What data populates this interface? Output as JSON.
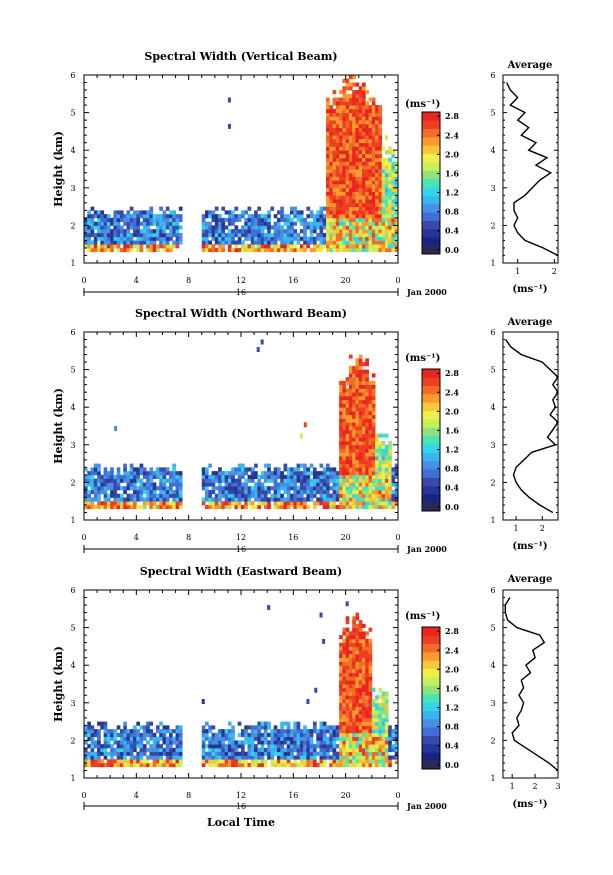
{
  "chart_data": [
    {
      "type": "heatmap",
      "title": "Spectral Width (Vertical Beam)",
      "ylabel": "Height (km)",
      "ylim": [
        1,
        6
      ],
      "xlim": [
        0,
        24
      ],
      "x_ticks": [
        "0",
        "4",
        "8",
        "12",
        "16",
        "20",
        "0"
      ],
      "y_ticks": [
        "1",
        "2",
        "3",
        "4",
        "5",
        "6"
      ],
      "day_label": "16",
      "month_label": "Jan 2000",
      "colorbar": {
        "unit": "(ms⁻¹)",
        "range": [
          0,
          2.8
        ],
        "labels": [
          "2.8",
          "2.4",
          "2.0",
          "1.6",
          "1.2",
          "0.8",
          "0.4",
          "0.0"
        ]
      },
      "cloud_top_km": 2.5,
      "gap_hours": [
        [
          7.5,
          8.8
        ]
      ],
      "storm": [
        {
          "start": 18.5,
          "end": 22.6,
          "top_km": 5.6,
          "peak_hour": 20.5,
          "peak_top_km": 6.0,
          "weak_end": 24
        }
      ],
      "spots": [
        [
          11,
          5.3,
          0.4
        ],
        [
          11,
          4.6,
          0.4
        ],
        [
          23,
          4.3,
          1.6
        ]
      ],
      "average": {
        "title": "Average",
        "xlabel": "(ms⁻¹)",
        "x_range": [
          0.6,
          2.1
        ],
        "x_ticks": [
          "1",
          "2"
        ],
        "y_ticks": [
          "1",
          "2",
          "3",
          "4",
          "5",
          "6"
        ],
        "height_km": [
          1.2,
          1.4,
          1.6,
          1.8,
          2.0,
          2.2,
          2.4,
          2.6,
          2.8,
          3.0,
          3.2,
          3.4,
          3.6,
          3.8,
          4.0,
          4.2,
          4.4,
          4.6,
          4.8,
          5.0,
          5.2,
          5.4,
          5.6,
          5.8
        ],
        "width_ms": [
          2.1,
          1.7,
          1.2,
          1.0,
          0.9,
          1.0,
          0.9,
          0.9,
          1.2,
          1.4,
          1.6,
          1.9,
          1.5,
          1.8,
          1.3,
          1.5,
          1.1,
          1.3,
          1.0,
          1.2,
          0.8,
          1.0,
          0.8,
          0.7
        ]
      }
    },
    {
      "type": "heatmap",
      "title": "Spectral Width (Northward Beam)",
      "ylabel": "Height (km)",
      "ylim": [
        1,
        6
      ],
      "xlim": [
        0,
        24
      ],
      "x_ticks": [
        "0",
        "4",
        "8",
        "12",
        "16",
        "20",
        "0"
      ],
      "y_ticks": [
        "1",
        "2",
        "3",
        "4",
        "5",
        "6"
      ],
      "day_label": "16",
      "month_label": "Jan 2000",
      "colorbar": {
        "unit": "(ms⁻¹)",
        "range": [
          0,
          2.8
        ],
        "labels": [
          "2.8",
          "2.4",
          "2.0",
          "1.6",
          "1.2",
          "0.8",
          "0.4",
          "0.0"
        ]
      },
      "cloud_top_km": 2.5,
      "gap_hours": [
        [
          7.5,
          8.8
        ]
      ],
      "storm": [
        {
          "start": 19.3,
          "end": 22.2,
          "top_km": 5.0,
          "peak_hour": 20.8,
          "peak_top_km": 5.5,
          "weak_end": 23.5
        }
      ],
      "spots": [
        [
          13.5,
          5.7,
          0.4
        ],
        [
          13.2,
          5.5,
          0.4
        ],
        [
          2.3,
          3.4,
          0.7
        ],
        [
          16.5,
          3.2,
          1.6
        ],
        [
          16.8,
          3.5,
          2.6
        ]
      ],
      "average": {
        "title": "Average",
        "xlabel": "(ms⁻¹)",
        "x_range": [
          0.5,
          2.6
        ],
        "x_ticks": [
          "1",
          "2"
        ],
        "y_ticks": [
          "1",
          "2",
          "3",
          "4",
          "5",
          "6"
        ],
        "height_km": [
          1.2,
          1.4,
          1.6,
          1.8,
          2.0,
          2.2,
          2.4,
          2.6,
          2.8,
          3.0,
          3.2,
          3.4,
          3.6,
          3.8,
          4.0,
          4.2,
          4.4,
          4.6,
          4.8,
          5.0,
          5.2,
          5.4,
          5.6,
          5.8
        ],
        "width_ms": [
          2.4,
          1.9,
          1.5,
          1.2,
          1.0,
          0.9,
          1.0,
          1.3,
          1.6,
          2.5,
          2.2,
          2.4,
          2.6,
          2.3,
          2.5,
          2.4,
          2.6,
          2.4,
          2.6,
          2.3,
          2.0,
          1.2,
          0.8,
          0.6
        ]
      }
    },
    {
      "type": "heatmap",
      "title": "Spectral Width (Eastward Beam)",
      "ylabel": "Height (km)",
      "xlabel": "Local Time",
      "ylim": [
        1,
        6
      ],
      "xlim": [
        0,
        24
      ],
      "x_ticks": [
        "0",
        "4",
        "8",
        "12",
        "16",
        "20",
        "0"
      ],
      "y_ticks": [
        "1",
        "2",
        "3",
        "4",
        "5",
        "6"
      ],
      "day_label": "16",
      "month_label": "Jan 2000",
      "colorbar": {
        "unit": "(ms⁻¹)",
        "range": [
          0,
          2.8
        ],
        "labels": [
          "2.8",
          "2.4",
          "2.0",
          "1.6",
          "1.2",
          "0.8",
          "0.4",
          "0.0"
        ]
      },
      "cloud_top_km": 2.5,
      "gap_hours": [
        [
          7.5,
          8.8
        ]
      ],
      "storm": [
        {
          "start": 19.3,
          "end": 22.0,
          "top_km": 5.0,
          "peak_hour": 20.7,
          "peak_top_km": 5.4,
          "weak_end": 23.2
        }
      ],
      "spots": [
        [
          17,
          3.0,
          0.5
        ],
        [
          17.6,
          3.3,
          0.5
        ],
        [
          18,
          5.3,
          0.4
        ],
        [
          18.2,
          4.6,
          0.4
        ],
        [
          14,
          5.5,
          0.4
        ],
        [
          20,
          5.6,
          0.4
        ],
        [
          9,
          3.0,
          0.3
        ]
      ],
      "average": {
        "title": "Average",
        "xlabel": "(ms⁻¹)",
        "x_range": [
          0.6,
          3.0
        ],
        "x_ticks": [
          "1",
          "2",
          "3"
        ],
        "y_ticks": [
          "1",
          "2",
          "3",
          "4",
          "5",
          "6"
        ],
        "height_km": [
          1.2,
          1.4,
          1.6,
          1.8,
          2.0,
          2.2,
          2.4,
          2.6,
          2.8,
          3.0,
          3.2,
          3.4,
          3.6,
          3.8,
          4.0,
          4.2,
          4.4,
          4.6,
          4.8,
          5.0,
          5.2,
          5.4,
          5.6,
          5.8
        ],
        "width_ms": [
          3.0,
          2.6,
          2.1,
          1.6,
          1.1,
          1.0,
          1.3,
          1.2,
          1.4,
          1.5,
          1.3,
          1.5,
          1.4,
          1.8,
          1.6,
          2.0,
          1.9,
          2.4,
          2.2,
          1.2,
          0.8,
          0.7,
          0.7,
          0.9
        ]
      }
    }
  ]
}
